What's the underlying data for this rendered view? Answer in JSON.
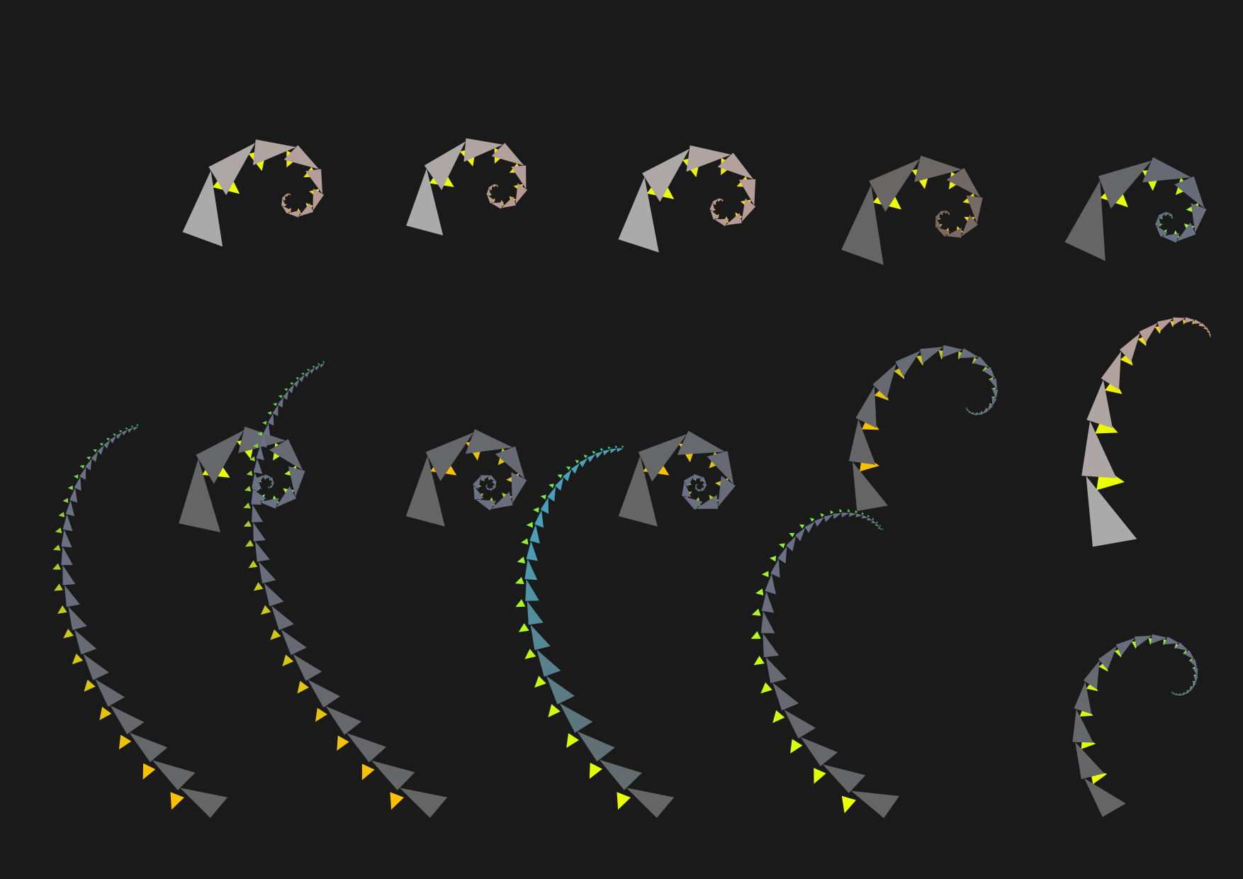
{
  "background": "#1a1a1a",
  "palette": {
    "trunk_light": "#aaaaaa",
    "trunk_dark": "#656565",
    "tint_warm": "#b89a95",
    "tint_warm_dark": "#7a6a66",
    "tint_cool": "#6a7185",
    "tint_teal": "#4aa0b8",
    "leaf_yellow": "#eaff00",
    "leaf_gold": "#ffd400",
    "leaf_amber": "#ffc000",
    "leaf_lime": "#9cff1a",
    "leaf_green": "#20e070",
    "leaf_orange": "#ff9a30"
  },
  "panels": [
    {
      "kind": "spiral",
      "depth": 12,
      "trunk": "trunk_light",
      "tint": "tint_warm",
      "leaf_a": "leaf_yellow",
      "leaf_b": "leaf_orange"
    },
    {
      "kind": "spiral",
      "depth": 12,
      "trunk": "trunk_light",
      "tint": "tint_warm",
      "leaf_a": "leaf_yellow",
      "leaf_b": "leaf_orange"
    },
    {
      "kind": "spiral",
      "depth": 12,
      "trunk": "trunk_light",
      "tint": "tint_warm",
      "leaf_a": "leaf_yellow",
      "leaf_b": "leaf_orange"
    },
    {
      "kind": "spiral",
      "depth": 12,
      "trunk": "trunk_dark",
      "tint": "tint_warm_dark",
      "leaf_a": "leaf_yellow",
      "leaf_b": "leaf_orange"
    },
    {
      "kind": "spiral",
      "depth": 12,
      "trunk": "trunk_dark",
      "tint": "tint_cool",
      "leaf_a": "leaf_yellow",
      "leaf_b": "leaf_green"
    },
    {
      "kind": "spiral",
      "depth": 14,
      "trunk": "trunk_dark",
      "tint": "tint_cool",
      "leaf_a": "leaf_yellow",
      "leaf_b": "leaf_green"
    },
    {
      "kind": "spiral",
      "depth": 16,
      "trunk": "trunk_dark",
      "tint": "tint_cool",
      "leaf_a": "leaf_amber",
      "leaf_b": "leaf_green"
    },
    {
      "kind": "spiral",
      "depth": 16,
      "trunk": "trunk_dark",
      "tint": "tint_cool",
      "leaf_a": "leaf_amber",
      "leaf_b": "leaf_green"
    },
    {
      "kind": "curl",
      "depth": 20,
      "trunk": "trunk_dark",
      "tint": "tint_cool",
      "leaf_a": "leaf_amber",
      "leaf_b": "leaf_green"
    },
    {
      "kind": "curl",
      "depth": 14,
      "trunk": "trunk_light",
      "tint": "tint_warm",
      "leaf_a": "leaf_yellow",
      "leaf_b": "leaf_orange"
    },
    {
      "kind": "frond",
      "depth": 26,
      "trunk": "trunk_dark",
      "tint": "tint_cool",
      "leaf_a": "leaf_amber",
      "leaf_b": "leaf_green"
    },
    {
      "kind": "frond",
      "depth": 30,
      "trunk": "trunk_dark",
      "tint": "tint_cool",
      "leaf_a": "leaf_amber",
      "leaf_b": "leaf_green"
    },
    {
      "kind": "frond",
      "depth": 24,
      "trunk": "trunk_dark",
      "tint": "tint_teal",
      "leaf_a": "leaf_yellow",
      "leaf_b": "leaf_green"
    },
    {
      "kind": "frond",
      "depth": 26,
      "trunk": "trunk_dark",
      "tint": "tint_cool",
      "leaf_a": "leaf_yellow",
      "leaf_b": "leaf_green"
    },
    {
      "kind": "curl",
      "depth": 22,
      "trunk": "trunk_dark",
      "tint": "tint_cool",
      "leaf_a": "leaf_yellow",
      "leaf_b": "leaf_green"
    }
  ]
}
